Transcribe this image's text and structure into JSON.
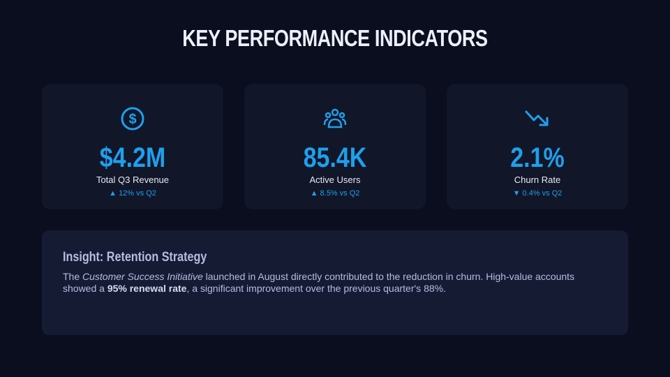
{
  "header": {
    "title": "KEY PERFORMANCE INDICATORS"
  },
  "kpis": [
    {
      "value": "$4.2M",
      "label": "Total Q3 Revenue",
      "change": "▲ 12% vs Q2"
    },
    {
      "value": "85.4K",
      "label": "Active Users",
      "change": "▲ 8.5% vs Q2"
    },
    {
      "value": "2.1%",
      "label": "Churn Rate",
      "change": "▼ 0.4% vs Q2"
    }
  ],
  "insight": {
    "title": "Insight: Retention Strategy",
    "paragraph": [
      "The ",
      "Customer Success Initiative",
      " launched in August directly contributed to the reduction in churn. High-value accounts showed a ",
      "95% renewal rate",
      ", a significant improvement over the previous quarter's 88%."
    ]
  }
}
